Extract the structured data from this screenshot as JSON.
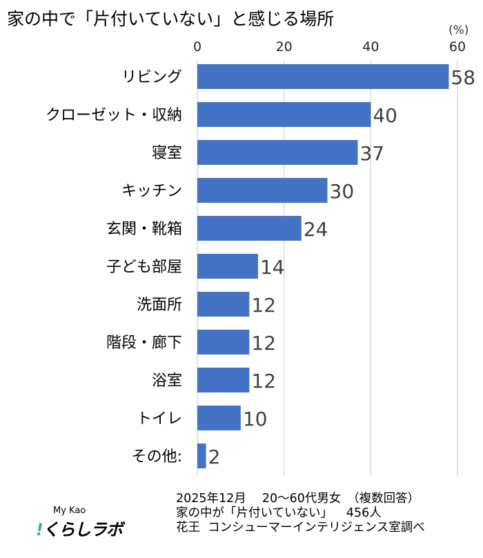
{
  "chart_data": {
    "type": "bar",
    "orientation": "horizontal",
    "title": "家の中で「片付いていない」と感じる場所",
    "unit_label": "(%)",
    "categories": [
      "リビング",
      "クローゼット・収納",
      "寝室",
      "キッチン",
      "玄関・靴箱",
      "子ども部屋",
      "洗面所",
      "階段・廊下",
      "浴室",
      "トイレ",
      "その他:"
    ],
    "values": [
      58,
      40,
      37,
      30,
      24,
      14,
      12,
      12,
      12,
      10,
      2
    ],
    "xlim": [
      0,
      60
    ],
    "xticks": [
      0,
      20,
      40,
      60
    ],
    "axis_position": "top",
    "grid": true,
    "bar_color": "#4472C4"
  },
  "footer": {
    "line1": "2025年12月　 20～60代男女　（複数回答）",
    "line2": "家の中が「片付いていない」　  456人",
    "line3": "花王  コンシューマーインテリジェンス室調べ"
  },
  "logo": {
    "brand": "My Kao",
    "name": "くらしラボ",
    "accent": "#2bb59a"
  }
}
